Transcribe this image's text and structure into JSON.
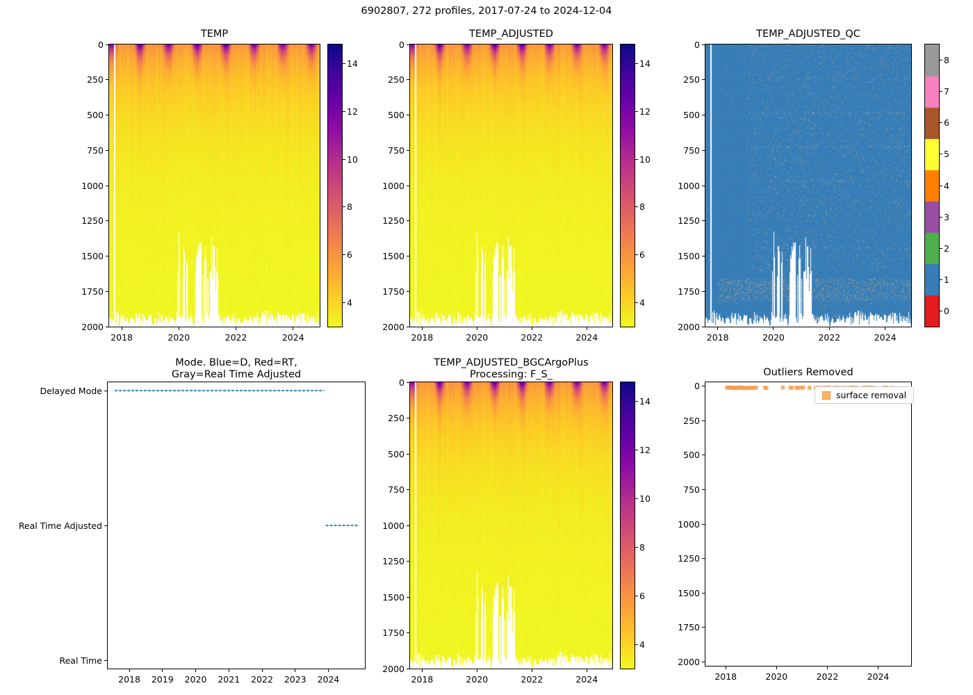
{
  "figure": {
    "title": "6902807, 272 profiles, 2017-07-24 to 2024-12-04"
  },
  "colormaps": {
    "plasma_r_stops": [
      {
        "p": 0.0,
        "c": "#0d0887"
      },
      {
        "p": 0.1,
        "c": "#41049d"
      },
      {
        "p": 0.2,
        "c": "#6a00a8"
      },
      {
        "p": 0.3,
        "c": "#8f0da4"
      },
      {
        "p": 0.4,
        "c": "#b12a90"
      },
      {
        "p": 0.5,
        "c": "#cc4778"
      },
      {
        "p": 0.6,
        "c": "#e16462"
      },
      {
        "p": 0.7,
        "c": "#f2844b"
      },
      {
        "p": 0.8,
        "c": "#fca636"
      },
      {
        "p": 0.9,
        "c": "#fcce25"
      },
      {
        "p": 1.0,
        "c": "#f0f921"
      }
    ],
    "qc_colors": [
      "#e41a1c",
      "#377eb8",
      "#4daf4a",
      "#984ea3",
      "#ff7f00",
      "#ffff33",
      "#a65628",
      "#f781bf",
      "#999999"
    ]
  },
  "chart_data": [
    {
      "id": "temp",
      "type": "heatmap",
      "title": "TEMP",
      "x_range": [
        2017.56,
        2024.93
      ],
      "y_range": [
        0,
        2000
      ],
      "y_inverted": true,
      "xticks": [
        2018,
        2020,
        2022,
        2024
      ],
      "yticks": [
        0,
        250,
        500,
        750,
        1000,
        1250,
        1500,
        1750,
        2000
      ],
      "colorbar": {
        "ticks": [
          4,
          6,
          8,
          10,
          12,
          14
        ],
        "vmin": 3.0,
        "vmax": 14.8,
        "colormap": "plasma_r"
      },
      "field": {
        "n_profiles": 272,
        "deep_temp": 3.03,
        "surface_winter_temp": 5.8,
        "surface_summer_max": 13.8,
        "seasonal_peak_fraction": 0.64,
        "thermocline_scale_m": 480,
        "normal_max_depth": [
          1925,
          2000
        ],
        "gaps": [
          {
            "t0": 2017.73,
            "t1": 2017.79,
            "type": "missing-profile"
          },
          {
            "t0": 2019.95,
            "t1": 2020.32,
            "max_depth": [
              1300,
              1650
            ],
            "p": 0.78
          },
          {
            "t0": 2020.58,
            "t1": 2021.38,
            "max_depth": [
              1350,
              1750
            ],
            "p": 0.66
          }
        ]
      }
    },
    {
      "id": "temp_adjusted",
      "type": "heatmap",
      "title": "TEMP_ADJUSTED",
      "field_same_as": "temp",
      "x_range": [
        2017.56,
        2024.93
      ],
      "y_range": [
        0,
        2000
      ],
      "y_inverted": true,
      "xticks": [
        2018,
        2020,
        2022,
        2024
      ],
      "yticks": [
        0,
        250,
        500,
        750,
        1000,
        1250,
        1500,
        1750,
        2000
      ],
      "colorbar": {
        "ticks": [
          4,
          6,
          8,
          10,
          12,
          14
        ],
        "vmin": 3.0,
        "vmax": 14.8,
        "colormap": "plasma_r"
      }
    },
    {
      "id": "temp_adjusted_qc",
      "type": "heatmap_categorical",
      "title": "TEMP_ADJUSTED_QC",
      "x_range": [
        2017.56,
        2024.93
      ],
      "y_range": [
        0,
        2000
      ],
      "y_inverted": true,
      "xticks": [
        2018,
        2020,
        2022,
        2024
      ],
      "yticks": [
        0,
        250,
        500,
        750,
        1000,
        1250,
        1500,
        1750,
        2000
      ],
      "colorbar": {
        "ticks": [
          0,
          1,
          2,
          3,
          4,
          5,
          6,
          7,
          8
        ],
        "colors": [
          "#e41a1c",
          "#377eb8",
          "#4daf4a",
          "#984ea3",
          "#ff7f00",
          "#ffff33",
          "#a65628",
          "#f781bf",
          "#999999"
        ]
      },
      "dominant_qc": 1,
      "speckle_qc": 8,
      "speckle_start_year": 2019.05,
      "dense_band": {
        "z0": 1660,
        "z1": 1820,
        "t_start": 2018.0
      }
    },
    {
      "id": "mode",
      "type": "line_categorical",
      "title_lines": [
        "Mode. Blue=D, Red=RT,",
        "Gray=Real Time Adjusted"
      ],
      "categories": [
        "Delayed Mode",
        "Real Time Adjusted",
        "Real Time"
      ],
      "x_range": [
        2017.35,
        2025.1
      ],
      "xticks": [
        2018,
        2019,
        2020,
        2021,
        2022,
        2023,
        2024
      ],
      "line_color": "#2878b5",
      "segments": [
        {
          "category": "Delayed Mode",
          "t0": 2017.56,
          "t1": 2023.87
        },
        {
          "category": "Real Time Adjusted",
          "t0": 2023.92,
          "t1": 2024.93
        }
      ]
    },
    {
      "id": "temp_adjusted_bgc",
      "type": "heatmap",
      "title_lines": [
        "TEMP_ADJUSTED_BGCArgoPlus",
        "Processing: F_S_"
      ],
      "field_same_as": "temp",
      "x_range": [
        2017.56,
        2024.93
      ],
      "y_range": [
        0,
        2000
      ],
      "y_inverted": true,
      "xticks": [
        2018,
        2020,
        2022,
        2024
      ],
      "yticks": [
        0,
        250,
        500,
        750,
        1000,
        1250,
        1500,
        1750,
        2000
      ],
      "colorbar": {
        "ticks": [
          4,
          6,
          8,
          10,
          12,
          14
        ],
        "vmin": 3.0,
        "vmax": 14.8,
        "colormap": "plasma_r"
      }
    },
    {
      "id": "outliers",
      "type": "scatter",
      "title": "Outliers Removed",
      "legend": {
        "label": "surface removal",
        "marker_color": "#fdb462"
      },
      "x_range": [
        2017.2,
        2025.3
      ],
      "y_range": [
        -30,
        2030
      ],
      "y_inverted": true,
      "xticks": [
        2018,
        2020,
        2022,
        2024
      ],
      "yticks": [
        0,
        250,
        500,
        750,
        1000,
        1250,
        1500,
        1750,
        2000
      ],
      "points_depth_m": 8,
      "times": [
        2018.05,
        2018.1,
        2018.15,
        2018.2,
        2018.25,
        2018.3,
        2018.38,
        2018.45,
        2018.5,
        2018.55,
        2018.6,
        2018.68,
        2018.75,
        2018.82,
        2018.9,
        2018.98,
        2019.05,
        2019.12,
        2019.2,
        2019.55,
        2019.6,
        2020.25,
        2020.55,
        2020.6,
        2020.78,
        2020.85,
        2020.95,
        2021.05,
        2021.3,
        2021.55,
        2021.62,
        2021.7,
        2021.78,
        2021.85,
        2021.92,
        2022.0,
        2022.08,
        2022.3,
        2022.38,
        2022.45,
        2022.55,
        2022.65,
        2022.72,
        2022.9,
        2022.98,
        2023.05,
        2023.15,
        2023.4,
        2023.48,
        2023.55,
        2023.65,
        2023.72,
        2023.8,
        2024.25,
        2024.32,
        2024.55
      ]
    }
  ]
}
